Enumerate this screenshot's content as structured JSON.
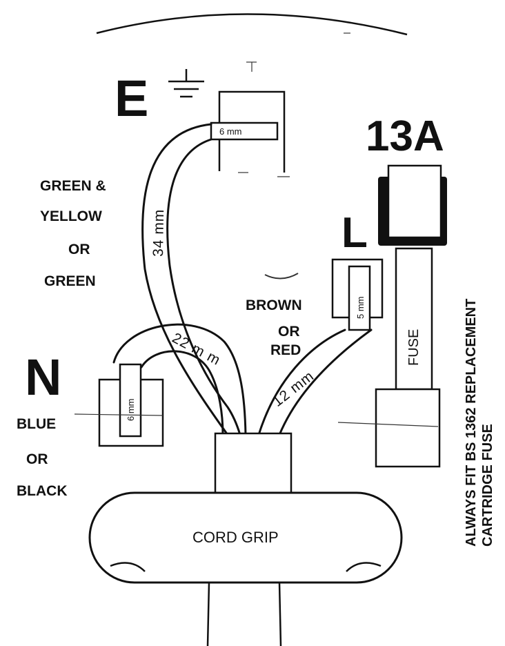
{
  "terminals": {
    "earth": {
      "letter": "E",
      "conductor_length": "34 mm",
      "strip_length": "6 mm"
    },
    "neutral": {
      "letter": "N",
      "conductor_length": "22 m m",
      "strip_length": "6 mm"
    },
    "live": {
      "letter": "L",
      "conductor_length": "12 mm",
      "strip_length": "5 mm"
    }
  },
  "colour_labels": {
    "earth": [
      "GREEN &",
      "YELLOW",
      "OR",
      "GREEN"
    ],
    "neutral": [
      "BLUE",
      "OR",
      "BLACK"
    ],
    "live": [
      "BROWN",
      "OR",
      "RED"
    ]
  },
  "fuse": {
    "rating": "13A",
    "label": "FUSE"
  },
  "cord_grip_label": "CORD GRIP",
  "note": [
    "ALWAYS FIT BS 1362 REPLACEMENT",
    "CARTRIDGE FUSE"
  ]
}
